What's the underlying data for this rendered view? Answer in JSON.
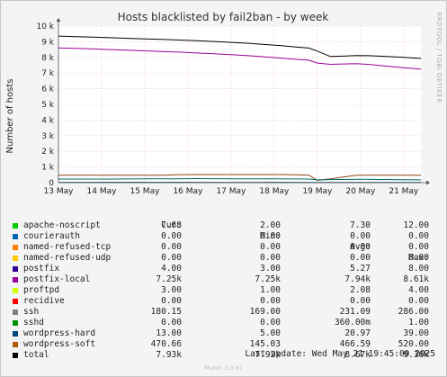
{
  "chart_data": {
    "type": "line",
    "title": "Hosts blacklisted by fail2ban - by week",
    "ylabel": "Number of hosts",
    "side_label": "RRDTOOL / TOBI OETIKER",
    "ylim": [
      0,
      10000
    ],
    "yticks": [
      0,
      1000,
      2000,
      3000,
      4000,
      5000,
      6000,
      7000,
      8000,
      9000,
      10000
    ],
    "ytick_labels": [
      "0",
      "1 k",
      "2 k",
      "3 k",
      "4 k",
      "5 k",
      "6 k",
      "7 k",
      "8 k",
      "9 k",
      "10 k"
    ],
    "xlim": [
      0,
      8.4
    ],
    "xticks": [
      0,
      1,
      2,
      3,
      4,
      5,
      6,
      7,
      8
    ],
    "xtick_labels": [
      "13 May",
      "14 May",
      "15 May",
      "16 May",
      "17 May",
      "18 May",
      "19 May",
      "20 May",
      "21 May"
    ],
    "grid": true,
    "series": [
      {
        "name": "total",
        "color": "#000000",
        "x": [
          0.0,
          0.4,
          0.8,
          1.2,
          1.6,
          2.0,
          2.4,
          2.8,
          3.2,
          3.6,
          4.0,
          4.4,
          4.8,
          5.2,
          5.5,
          5.8,
          6.0,
          6.3,
          6.6,
          6.9,
          7.2,
          7.6,
          8.0,
          8.4
        ],
        "values": [
          9360,
          9330,
          9300,
          9260,
          9220,
          9180,
          9150,
          9110,
          9070,
          9020,
          8960,
          8900,
          8820,
          8740,
          8660,
          8600,
          8400,
          8060,
          8080,
          8120,
          8110,
          8060,
          8000,
          7930
        ]
      },
      {
        "name": "postfix-local",
        "color": "#990099",
        "x": [
          0.0,
          0.4,
          0.8,
          1.2,
          1.6,
          2.0,
          2.4,
          2.8,
          3.2,
          3.6,
          4.0,
          4.4,
          4.8,
          5.2,
          5.5,
          5.8,
          6.0,
          6.3,
          6.6,
          6.9,
          7.2,
          7.6,
          8.0,
          8.4
        ],
        "values": [
          8610,
          8580,
          8540,
          8500,
          8460,
          8420,
          8380,
          8340,
          8280,
          8230,
          8170,
          8110,
          8030,
          7950,
          7880,
          7820,
          7640,
          7560,
          7580,
          7600,
          7550,
          7440,
          7340,
          7250
        ]
      },
      {
        "name": "wordpress-soft",
        "color": "#8a4513",
        "x": [
          0.0,
          0.4,
          0.8,
          1.2,
          1.6,
          2.0,
          2.4,
          2.8,
          3.2,
          3.6,
          4.0,
          4.4,
          4.8,
          5.2,
          5.5,
          5.8,
          6.0,
          6.3,
          6.6,
          6.9,
          7.2,
          7.6,
          8.0,
          8.4
        ],
        "values": [
          470,
          470,
          470,
          470,
          470,
          470,
          470,
          510,
          520,
          520,
          520,
          520,
          520,
          515,
          500,
          480,
          145,
          240,
          360,
          470,
          475,
          470,
          470,
          470
        ]
      },
      {
        "name": "ssh",
        "color": "#006666",
        "x": [
          0.0,
          1.0,
          2.0,
          2.8,
          3.2,
          4.0,
          5.0,
          5.8,
          6.0,
          6.5,
          7.0,
          8.0,
          8.4
        ],
        "values": [
          230,
          230,
          240,
          250,
          260,
          250,
          240,
          230,
          180,
          200,
          210,
          190,
          180
        ]
      },
      {
        "name": "wordpress-hard",
        "color": "#004466",
        "x": [
          0.0,
          1.0,
          2.0,
          3.0,
          4.0,
          5.0,
          6.0,
          7.0,
          8.4
        ],
        "values": [
          20,
          22,
          24,
          21,
          20,
          22,
          18,
          20,
          13
        ]
      }
    ]
  },
  "legend": {
    "headers": {
      "cur": "Cur:",
      "min": "Min:",
      "avg": "Avg:",
      "max": "Max:"
    },
    "rows": [
      {
        "name": "apache-noscript",
        "color": "#00cc00",
        "cur": "7.68",
        "min": "2.00",
        "avg": "7.30",
        "max": "12.00"
      },
      {
        "name": "courierauth",
        "color": "#0066b3",
        "cur": "0.00",
        "min": "0.00",
        "avg": "0.00",
        "max": "0.00"
      },
      {
        "name": "named-refused-tcp",
        "color": "#ff8000",
        "cur": "0.00",
        "min": "0.00",
        "avg": "0.00",
        "max": "0.00"
      },
      {
        "name": "named-refused-udp",
        "color": "#ffcc00",
        "cur": "0.00",
        "min": "0.00",
        "avg": "0.00",
        "max": "0.00"
      },
      {
        "name": "postfix",
        "color": "#330099",
        "cur": "4.00",
        "min": "3.00",
        "avg": "5.27",
        "max": "8.00"
      },
      {
        "name": "postfix-local",
        "color": "#990099",
        "cur": "7.25k",
        "min": "7.25k",
        "avg": "7.94k",
        "max": "8.61k"
      },
      {
        "name": "proftpd",
        "color": "#ccff00",
        "cur": "3.00",
        "min": "1.00",
        "avg": "2.08",
        "max": "4.00"
      },
      {
        "name": "recidive",
        "color": "#ff0000",
        "cur": "0.00",
        "min": "0.00",
        "avg": "0.00",
        "max": "0.00"
      },
      {
        "name": "ssh",
        "color": "#808080",
        "cur": "180.15",
        "min": "169.00",
        "avg": "231.09",
        "max": "286.00"
      },
      {
        "name": "sshd",
        "color": "#008f00",
        "cur": "0.00",
        "min": "0.00",
        "avg": "360.00m",
        "max": "1.00"
      },
      {
        "name": "wordpress-hard",
        "color": "#00487d",
        "cur": "13.00",
        "min": "5.00",
        "avg": "20.97",
        "max": "39.00"
      },
      {
        "name": "wordpress-soft",
        "color": "#b35a00",
        "cur": "470.66",
        "min": "145.03",
        "avg": "466.59",
        "max": "520.00"
      },
      {
        "name": "total",
        "color": "#000000",
        "cur": "7.93k",
        "min": "7.92k",
        "avg": "8.67k",
        "max": "9.36k"
      }
    ]
  },
  "footer": {
    "last_update": "Last update: Wed May 21 19:45:00 2025",
    "munin": "Munin 2.0.67"
  }
}
